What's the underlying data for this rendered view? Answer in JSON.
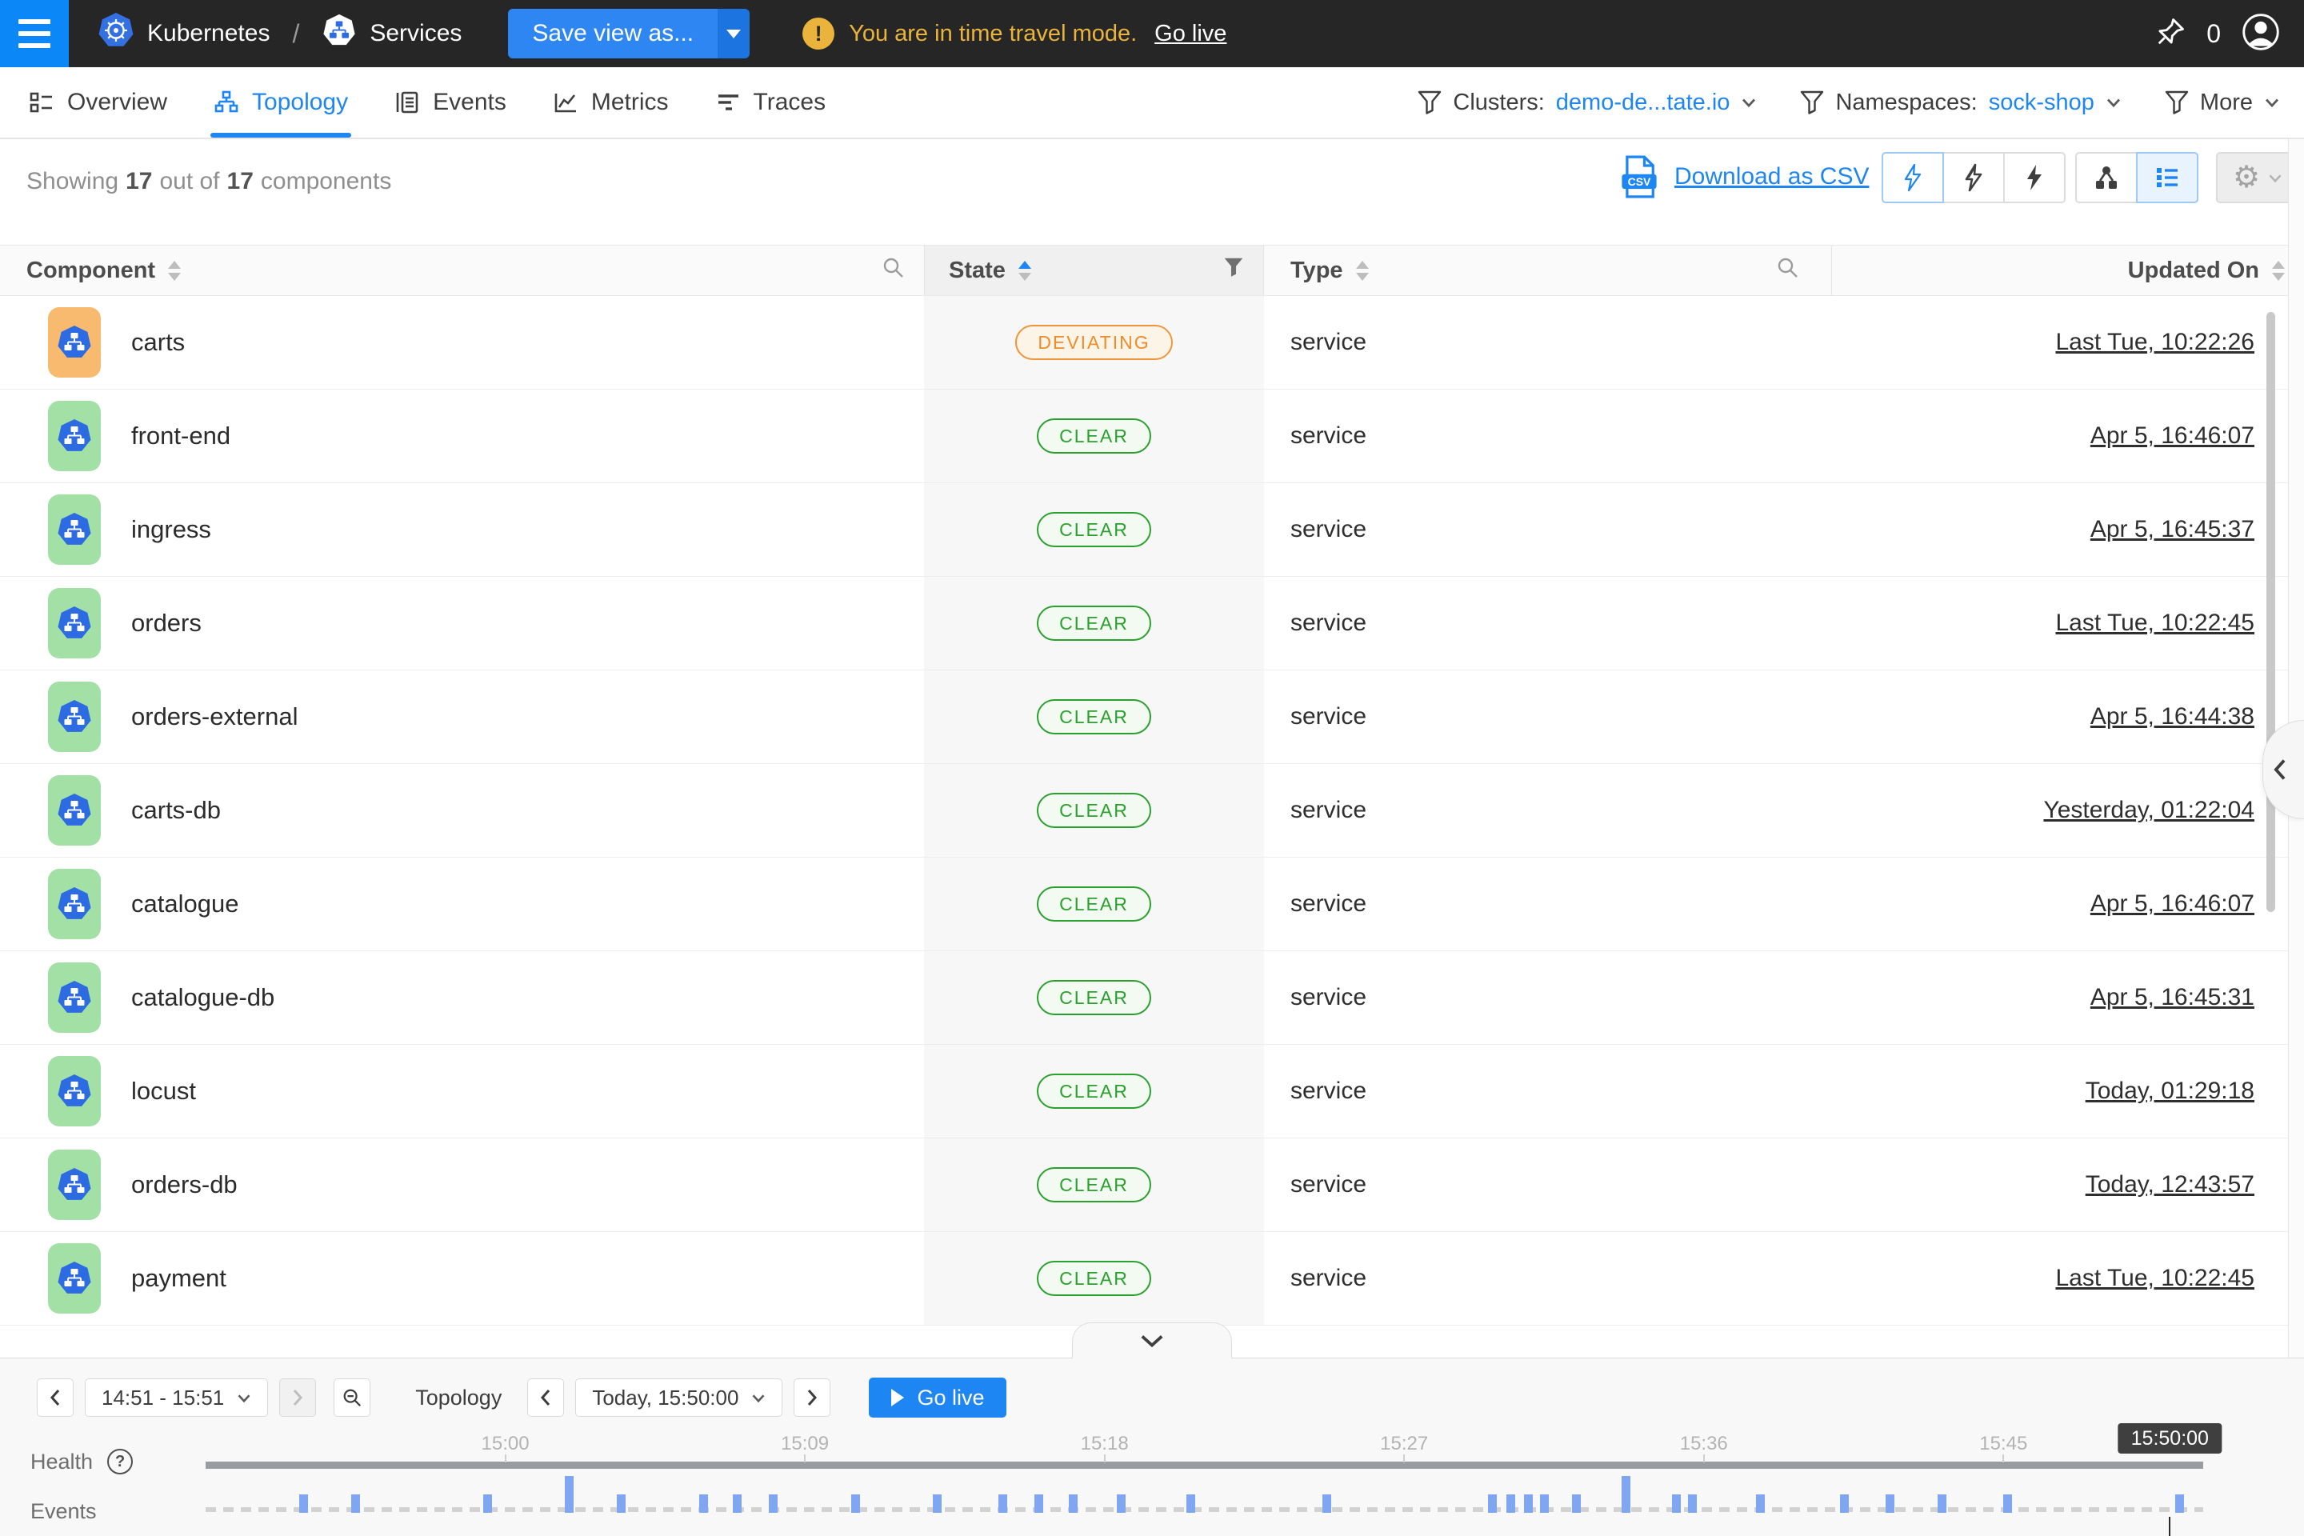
{
  "topbar": {
    "breadcrumb": {
      "kubernetes": "Kubernetes",
      "separator": "/",
      "services": "Services"
    },
    "save_label": "Save view as...",
    "warning_text": "You are in time travel mode.",
    "go_live_label": "Go live",
    "warning_glyph": "!",
    "pin_count": "0"
  },
  "tabs": {
    "items": [
      {
        "label": "Overview",
        "active": false
      },
      {
        "label": "Topology",
        "active": true
      },
      {
        "label": "Events",
        "active": false
      },
      {
        "label": "Metrics",
        "active": false
      },
      {
        "label": "Traces",
        "active": false
      }
    ]
  },
  "filters": [
    {
      "label": "Clusters:",
      "value": "demo-de...tate.io"
    },
    {
      "label": "Namespaces:",
      "value": "sock-shop"
    },
    {
      "label": "More",
      "value": ""
    }
  ],
  "toolbar": {
    "showing": {
      "prefix": "Showing",
      "count": "17",
      "middle": "out of",
      "total": "17",
      "suffix": "components"
    },
    "download_label": "Download as CSV",
    "csv_icon_text": "CSV"
  },
  "table": {
    "columns": {
      "component": "Component",
      "state": "State",
      "type": "Type",
      "updated": "Updated On"
    },
    "rows": [
      {
        "name": "carts",
        "state": "DEVIATING",
        "type": "service",
        "updated": "Last Tue, 10:22:26"
      },
      {
        "name": "front-end",
        "state": "CLEAR",
        "type": "service",
        "updated": "Apr 5, 16:46:07"
      },
      {
        "name": "ingress",
        "state": "CLEAR",
        "type": "service",
        "updated": "Apr 5, 16:45:37"
      },
      {
        "name": "orders",
        "state": "CLEAR",
        "type": "service",
        "updated": "Last Tue, 10:22:45"
      },
      {
        "name": "orders-external",
        "state": "CLEAR",
        "type": "service",
        "updated": "Apr 5, 16:44:38"
      },
      {
        "name": "carts-db",
        "state": "CLEAR",
        "type": "service",
        "updated": "Yesterday, 01:22:04"
      },
      {
        "name": "catalogue",
        "state": "CLEAR",
        "type": "service",
        "updated": "Apr 5, 16:46:07"
      },
      {
        "name": "catalogue-db",
        "state": "CLEAR",
        "type": "service",
        "updated": "Apr 5, 16:45:31"
      },
      {
        "name": "locust",
        "state": "CLEAR",
        "type": "service",
        "updated": "Today, 01:29:18"
      },
      {
        "name": "orders-db",
        "state": "CLEAR",
        "type": "service",
        "updated": "Today, 12:43:57"
      },
      {
        "name": "payment",
        "state": "CLEAR",
        "type": "service",
        "updated": "Last Tue, 10:22:45"
      }
    ]
  },
  "timeline": {
    "range": "14:51 - 15:51",
    "context": "Topology",
    "datetime": "Today, 15:50:00",
    "go_live": "Go live",
    "health_label": "Health",
    "events_label": "Events",
    "help_glyph": "?"
  },
  "chart_data": {
    "type": "bar",
    "title": "Events over time",
    "x_axis": {
      "start": "14:51",
      "end": "15:51",
      "ticks": [
        {
          "label": "15:00",
          "f": 0.15
        },
        {
          "label": "15:09",
          "f": 0.3
        },
        {
          "label": "15:18",
          "f": 0.45
        },
        {
          "label": "15:27",
          "f": 0.6
        },
        {
          "label": "15:36",
          "f": 0.75
        },
        {
          "label": "15:45",
          "f": 0.9
        }
      ]
    },
    "playhead": {
      "label": "15:50:00",
      "f": 0.9833
    },
    "bar_color": "#7ea6f3",
    "health_bar_color": "#999ca1",
    "events": [
      {
        "f": 0.049,
        "h": 23
      },
      {
        "f": 0.075,
        "h": 23
      },
      {
        "f": 0.141,
        "h": 23
      },
      {
        "f": 0.182,
        "h": 46
      },
      {
        "f": 0.208,
        "h": 23
      },
      {
        "f": 0.249,
        "h": 23
      },
      {
        "f": 0.266,
        "h": 23
      },
      {
        "f": 0.284,
        "h": 23
      },
      {
        "f": 0.325,
        "h": 23
      },
      {
        "f": 0.366,
        "h": 23
      },
      {
        "f": 0.399,
        "h": 23
      },
      {
        "f": 0.417,
        "h": 23
      },
      {
        "f": 0.434,
        "h": 23
      },
      {
        "f": 0.458,
        "h": 23
      },
      {
        "f": 0.493,
        "h": 23
      },
      {
        "f": 0.561,
        "h": 23
      },
      {
        "f": 0.644,
        "h": 23
      },
      {
        "f": 0.653,
        "h": 23
      },
      {
        "f": 0.662,
        "h": 23
      },
      {
        "f": 0.67,
        "h": 23
      },
      {
        "f": 0.686,
        "h": 23
      },
      {
        "f": 0.711,
        "h": 46
      },
      {
        "f": 0.736,
        "h": 23
      },
      {
        "f": 0.744,
        "h": 23
      },
      {
        "f": 0.778,
        "h": 23
      },
      {
        "f": 0.82,
        "h": 23
      },
      {
        "f": 0.843,
        "h": 23
      },
      {
        "f": 0.869,
        "h": 23
      },
      {
        "f": 0.902,
        "h": 23
      },
      {
        "f": 0.988,
        "h": 23
      }
    ]
  },
  "colors": {
    "accent": "#1e86f2",
    "topbar_bg": "#262626",
    "hamburger_bg": "#0b87f7",
    "warning": "#eab43c",
    "deviating": "#ef8c27",
    "clear": "#2aa12d",
    "icon_bg_deviating": "#f7ba6e",
    "icon_bg_clear": "#a2e0a6",
    "service_icon_blue": "#2d6be2"
  }
}
